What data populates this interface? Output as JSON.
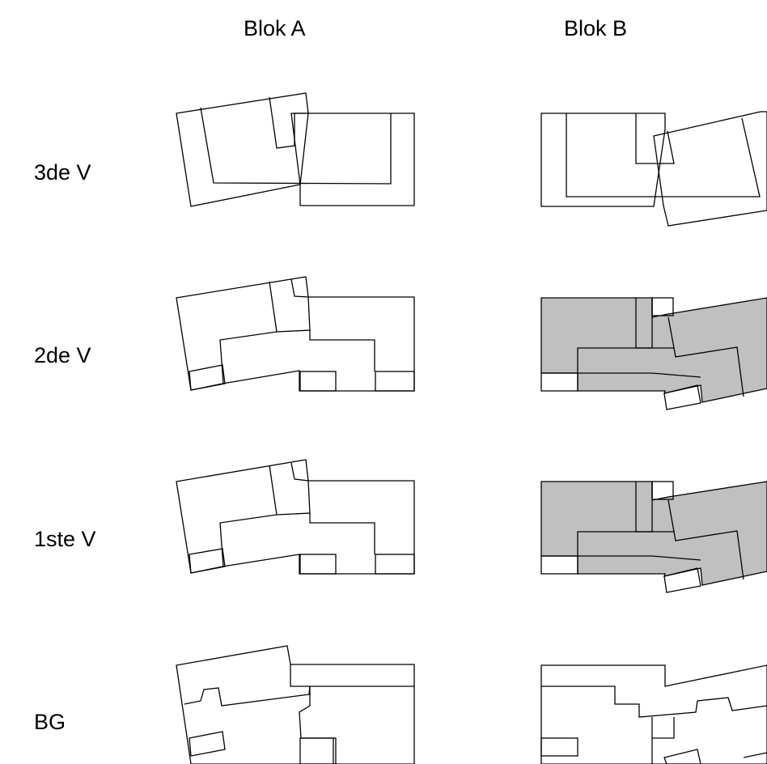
{
  "columns": {
    "block_a": "Blok A",
    "block_b": "Blok B"
  },
  "floors": {
    "third": "3de V",
    "second": "2de V",
    "first": "1ste V",
    "ground": "BG"
  },
  "colors": {
    "line": "#000000",
    "shaded": "#c0c0c0",
    "background": "#ffffff"
  }
}
